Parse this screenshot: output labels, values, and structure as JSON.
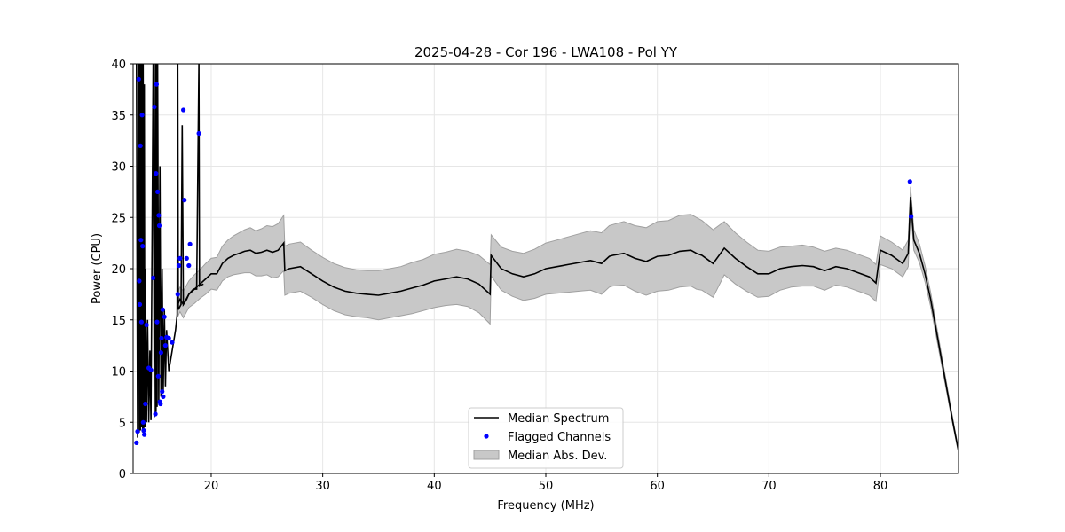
{
  "chart_data": {
    "type": "line",
    "title": "2025-04-28 - Cor 196 - LWA108 - Pol YY",
    "xlabel": "Frequency (MHz)",
    "ylabel": "Power (CPU)",
    "xlim": [
      13.0,
      87.0
    ],
    "ylim": [
      0,
      40
    ],
    "xticks": [
      20,
      30,
      40,
      50,
      60,
      70,
      80
    ],
    "yticks": [
      0,
      5,
      10,
      15,
      20,
      25,
      30,
      35,
      40
    ],
    "grid": true,
    "legend": {
      "placement": "bottom-center",
      "entries": [
        "Median Spectrum",
        "Flagged Channels",
        "Median Abs. Dev."
      ]
    },
    "colors": {
      "median": "#000000",
      "flagged": "#0000ff",
      "band": "#c8c8c8",
      "band_edge": "#a0a0a0",
      "grid": "#e6e6e6"
    },
    "series": [
      {
        "name": "Median Spectrum",
        "x": [
          17.0,
          17.2,
          17.5,
          18.0,
          18.5,
          19.0,
          19.5,
          20.0,
          20.5,
          21.0,
          21.5,
          22.0,
          22.5,
          23.0,
          23.5,
          24.0,
          24.5,
          25.0,
          25.5,
          26.0,
          26.5,
          26.6,
          27.0,
          28.0,
          29.0,
          30.0,
          31.0,
          32.0,
          33.0,
          34.0,
          35.0,
          36.0,
          37.0,
          38.0,
          39.0,
          40.0,
          41.0,
          42.0,
          43.0,
          44.0,
          45.0,
          45.1,
          46.0,
          47.0,
          48.0,
          49.0,
          50.0,
          51.0,
          52.0,
          53.0,
          54.0,
          55.0,
          55.7,
          56.0,
          57.0,
          58.0,
          59.0,
          60.0,
          61.0,
          62.0,
          63.0,
          63.5,
          64.0,
          65.0,
          66.0,
          67.0,
          68.0,
          69.0,
          70.0,
          71.0,
          72.0,
          73.0,
          74.0,
          75.0,
          76.0,
          77.0,
          78.0,
          79.0,
          79.6,
          80.0,
          81.0,
          82.0,
          82.5,
          82.7,
          83.0,
          83.5,
          84.0,
          84.5,
          85.0,
          85.5,
          86.0,
          86.5,
          87.0
        ],
        "y": [
          16.5,
          17.0,
          16.5,
          17.5,
          18.0,
          18.5,
          19.0,
          19.5,
          19.5,
          20.5,
          21.0,
          21.3,
          21.5,
          21.7,
          21.8,
          21.5,
          21.6,
          21.8,
          21.6,
          21.8,
          22.5,
          19.8,
          20.0,
          20.2,
          19.5,
          18.8,
          18.2,
          17.8,
          17.6,
          17.5,
          17.4,
          17.6,
          17.8,
          18.1,
          18.4,
          18.8,
          19.0,
          19.2,
          19.0,
          18.5,
          17.5,
          21.3,
          20.0,
          19.5,
          19.2,
          19.5,
          20.0,
          20.2,
          20.4,
          20.6,
          20.8,
          20.5,
          21.2,
          21.3,
          21.5,
          21.0,
          20.7,
          21.2,
          21.3,
          21.7,
          21.8,
          21.5,
          21.3,
          20.5,
          22.0,
          21.0,
          20.2,
          19.5,
          19.5,
          20.0,
          20.2,
          20.3,
          20.2,
          19.8,
          20.2,
          20.0,
          19.6,
          19.2,
          18.6,
          21.8,
          21.3,
          20.5,
          21.5,
          27.0,
          22.8,
          21.5,
          19.5,
          17.0,
          14.0,
          11.0,
          8.0,
          5.0,
          2.2
        ],
        "band_halfwidth": [
          1.2,
          1.2,
          1.3,
          1.3,
          1.4,
          1.4,
          1.5,
          1.5,
          1.6,
          1.7,
          1.8,
          1.9,
          2.0,
          2.1,
          2.2,
          2.2,
          2.3,
          2.4,
          2.5,
          2.6,
          2.7,
          2.4,
          2.4,
          2.4,
          2.3,
          2.3,
          2.3,
          2.3,
          2.3,
          2.3,
          2.4,
          2.4,
          2.4,
          2.5,
          2.5,
          2.6,
          2.6,
          2.7,
          2.7,
          2.8,
          2.9,
          2.0,
          2.1,
          2.2,
          2.3,
          2.4,
          2.5,
          2.6,
          2.7,
          2.8,
          2.9,
          3.0,
          3.0,
          3.0,
          3.1,
          3.2,
          3.3,
          3.4,
          3.4,
          3.5,
          3.5,
          3.5,
          3.4,
          3.3,
          2.6,
          2.5,
          2.4,
          2.3,
          2.2,
          2.1,
          2.0,
          2.0,
          1.9,
          1.9,
          1.8,
          1.8,
          1.8,
          1.8,
          1.8,
          1.4,
          1.3,
          1.3,
          1.3,
          1.0,
          1.0,
          0.9,
          0.8,
          0.7,
          0.6,
          0.5,
          0.4,
          0.3,
          0.2
        ]
      },
      {
        "name": "Flagged Channels",
        "x": [
          13.3,
          13.4,
          13.5,
          13.55,
          13.6,
          13.65,
          13.7,
          13.75,
          13.8,
          13.85,
          13.9,
          13.95,
          14.0,
          14.1,
          14.2,
          14.4,
          14.6,
          14.8,
          14.9,
          15.0,
          15.05,
          15.1,
          15.15,
          15.2,
          15.25,
          15.3,
          15.35,
          15.4,
          15.45,
          15.5,
          15.55,
          15.6,
          15.65,
          15.7,
          15.8,
          15.9,
          16.0,
          16.2,
          16.5,
          17.0,
          17.1,
          17.2,
          17.5,
          17.6,
          17.8,
          18.0,
          18.1,
          18.9,
          82.65,
          82.75
        ],
        "y": [
          3.0,
          4.1,
          38.5,
          18.8,
          16.5,
          32.0,
          22.8,
          14.8,
          35.0,
          22.2,
          5.0,
          4.2,
          3.8,
          6.8,
          14.5,
          10.3,
          10.1,
          19.1,
          35.8,
          5.8,
          29.3,
          38.0,
          14.8,
          27.5,
          9.5,
          25.2,
          24.2,
          7.0,
          6.8,
          11.8,
          13.2,
          8.0,
          16.0,
          7.5,
          15.3,
          12.5,
          13.3,
          13.2,
          12.8,
          17.5,
          20.3,
          21.0,
          35.5,
          26.7,
          21.0,
          20.3,
          22.4,
          33.2,
          28.5,
          25.1
        ]
      }
    ],
    "rfi_spikes": [
      [
        13.3,
        40
      ],
      [
        13.4,
        3.5
      ],
      [
        13.5,
        40
      ],
      [
        13.55,
        4
      ],
      [
        13.6,
        40
      ],
      [
        13.65,
        4.2
      ],
      [
        13.7,
        40
      ],
      [
        13.75,
        4.5
      ],
      [
        13.8,
        40
      ],
      [
        13.85,
        4
      ],
      [
        13.9,
        40
      ],
      [
        13.95,
        4.2
      ],
      [
        14.0,
        38
      ],
      [
        14.05,
        4.5
      ],
      [
        14.1,
        20
      ],
      [
        14.2,
        5
      ],
      [
        14.3,
        15
      ],
      [
        14.4,
        5
      ],
      [
        14.5,
        12
      ],
      [
        14.6,
        5.2
      ],
      [
        14.8,
        40
      ],
      [
        14.9,
        5.5
      ],
      [
        15.0,
        40
      ],
      [
        15.05,
        6
      ],
      [
        15.1,
        40
      ],
      [
        15.15,
        6.5
      ],
      [
        15.2,
        40
      ],
      [
        15.3,
        7
      ],
      [
        15.4,
        30
      ],
      [
        15.5,
        7.5
      ],
      [
        15.6,
        20
      ],
      [
        15.7,
        8
      ],
      [
        15.8,
        16
      ],
      [
        15.9,
        8.5
      ],
      [
        16.0,
        14
      ],
      [
        16.2,
        10
      ],
      [
        16.5,
        12
      ],
      [
        16.8,
        14
      ],
      [
        16.95,
        15.5
      ],
      [
        17.0,
        40
      ],
      [
        17.05,
        16
      ],
      [
        17.3,
        16.5
      ],
      [
        17.4,
        34
      ],
      [
        17.5,
        16.5
      ],
      [
        17.8,
        17
      ],
      [
        18.0,
        17.5
      ],
      [
        18.4,
        18
      ],
      [
        18.7,
        18
      ],
      [
        18.9,
        40
      ],
      [
        18.95,
        18.3
      ],
      [
        19.3,
        18.5
      ]
    ]
  }
}
